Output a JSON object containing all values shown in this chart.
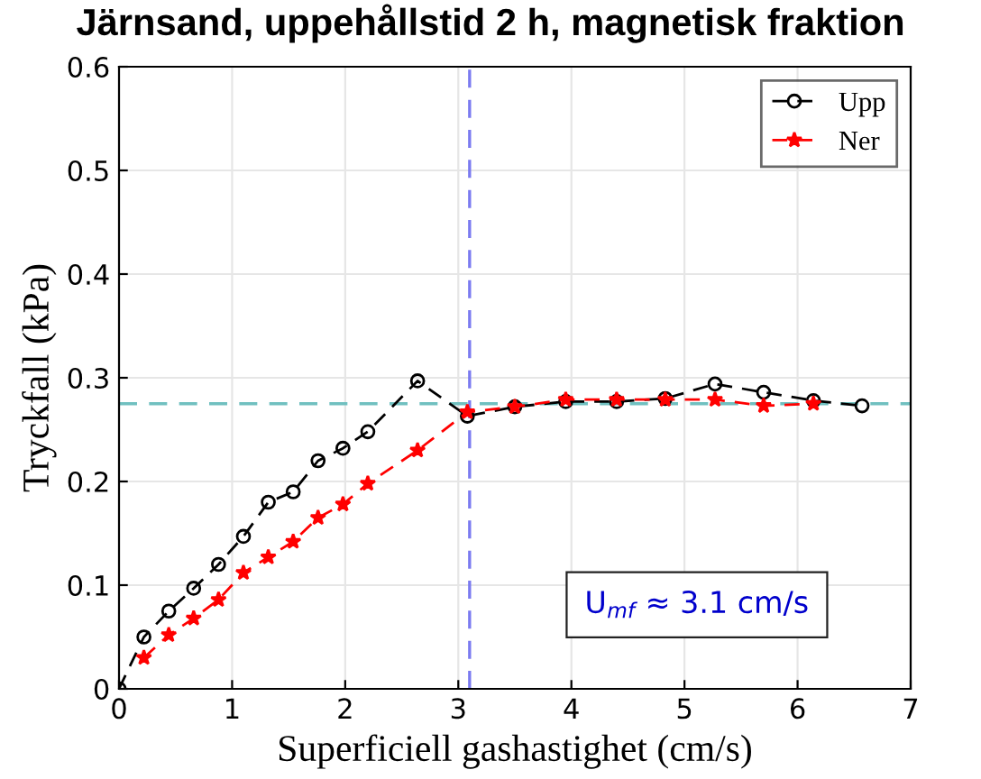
{
  "chart_data": {
    "type": "line",
    "title": "Järnsand, uppehållstid 2 h, magnetisk fraktion",
    "xlabel": "Superficiell gashastighet (cm/s)",
    "ylabel": "Tryckfall (kPa)",
    "xlim": [
      0,
      7
    ],
    "xticks": [
      0,
      1,
      2,
      3,
      4,
      5,
      6,
      7
    ],
    "ylim": [
      0,
      0.6
    ],
    "yticks": [
      0,
      0.1,
      0.2,
      0.3,
      0.4,
      0.5,
      0.6
    ],
    "grid": true,
    "legend": "top right",
    "line_style": "dashed",
    "series": [
      {
        "name": "Upp",
        "color": "#000000",
        "marker": "circle",
        "x": [
          0,
          0.22,
          0.44,
          0.66,
          0.88,
          1.1,
          1.32,
          1.54,
          1.76,
          1.98,
          2.2,
          2.64,
          3.08,
          3.5,
          3.95,
          4.4,
          4.83,
          5.27,
          5.7,
          6.14,
          6.57
        ],
        "values": [
          0,
          0.05,
          0.075,
          0.097,
          0.12,
          0.147,
          0.18,
          0.19,
          0.22,
          0.232,
          0.248,
          0.297,
          0.263,
          0.272,
          0.277,
          0.277,
          0.28,
          0.294,
          0.286,
          0.278,
          0.273
        ]
      },
      {
        "name": "Ner",
        "color": "#ff0000",
        "marker": "star",
        "x": [
          0.22,
          0.44,
          0.66,
          0.88,
          1.1,
          1.32,
          1.54,
          1.76,
          1.98,
          2.2,
          2.64,
          3.08,
          3.5,
          3.95,
          4.4,
          4.83,
          5.27,
          5.7,
          6.14
        ],
        "values": [
          0.03,
          0.052,
          0.068,
          0.086,
          0.112,
          0.127,
          0.142,
          0.165,
          0.178,
          0.198,
          0.23,
          0.267,
          0.272,
          0.279,
          0.279,
          0.279,
          0.279,
          0.273,
          0.275
        ]
      }
    ],
    "ref_lines": [
      {
        "axis": "x",
        "value": 3.1,
        "color": "#7b7bf0",
        "line_style": "dashed"
      },
      {
        "axis": "y",
        "value": 0.275,
        "color": "#70c0c0",
        "line_style": "dashed"
      }
    ],
    "annotations": [
      "U$_{mf}$ ≈ 3.1 cm/s"
    ]
  }
}
